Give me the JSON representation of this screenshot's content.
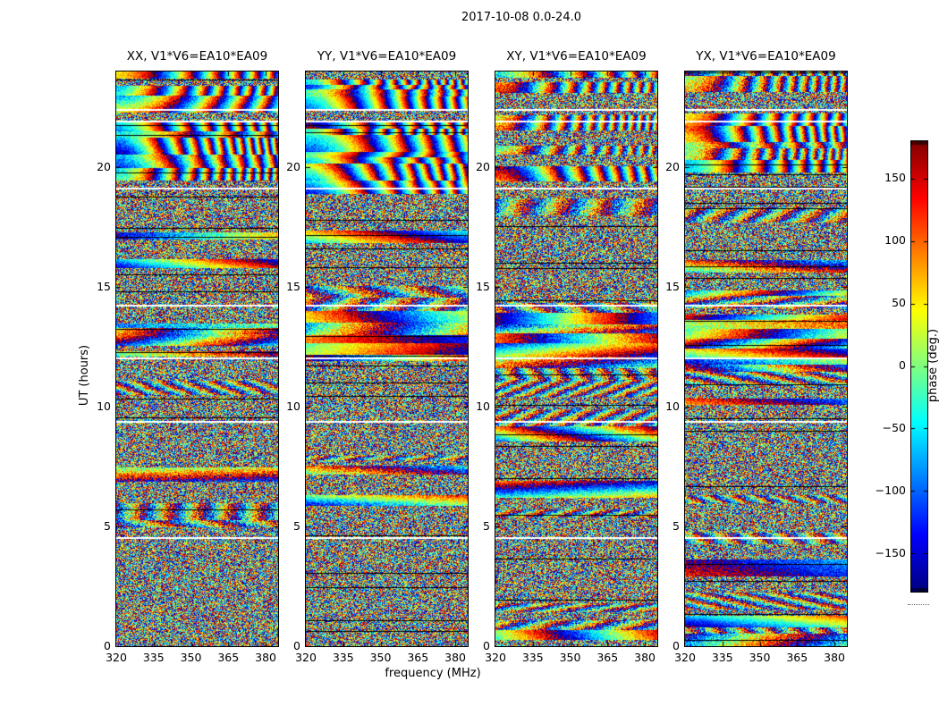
{
  "figure": {
    "title": "2017-10-08 0.0-24.0",
    "xlabel": "frequency (MHz)",
    "ylabel": "UT (hours)",
    "colorbar_label": "phase (deg.)"
  },
  "chart_data": {
    "type": "heatmap",
    "title": "2017-10-08 0.0-24.0",
    "xlabel": "frequency (MHz)",
    "ylabel": "UT (hours)",
    "panels": [
      {
        "pol": "XX",
        "title": "XX, V1*V6=EA10*EA09"
      },
      {
        "pol": "YY",
        "title": "YY, V1*V6=EA10*EA09"
      },
      {
        "pol": "XY",
        "title": "XY, V1*V6=EA10*EA09"
      },
      {
        "pol": "YX",
        "title": "YX, V1*V6=EA10*EA09"
      }
    ],
    "x_range": [
      320,
      385
    ],
    "x_ticks": [
      320,
      335,
      350,
      365,
      380
    ],
    "y_range": [
      0,
      24
    ],
    "y_ticks": [
      0,
      5,
      10,
      15,
      20
    ],
    "colorbar": {
      "label": "phase (deg.)",
      "range": [
        -180,
        180
      ],
      "ticks": [
        150,
        100,
        50,
        0,
        -50,
        -100,
        -150
      ],
      "tick_labels": [
        "150",
        "100",
        "50",
        "0",
        "−50",
        "−100",
        "−150"
      ],
      "colormap": "jet"
    },
    "gaps_hours": [
      22.45,
      21.95,
      19.15,
      14.25,
      12.05,
      9.4,
      4.55
    ],
    "coherent_region_hours": [
      19.3,
      24
    ],
    "stripe_region_hours": [
      12.0,
      14.3
    ],
    "render_seed": 1337,
    "note": "per-pixel values are noise-like visibility phases (deg); texture rendered procedurally, not individually resolvable from the screenshot"
  }
}
